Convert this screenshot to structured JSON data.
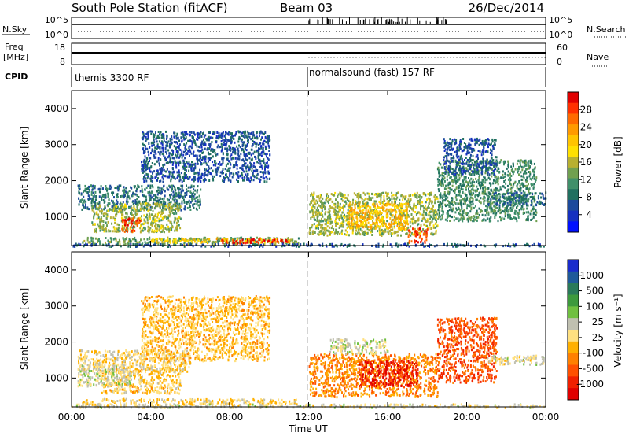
{
  "header": {
    "station": "South Pole Station (fitACF)",
    "beam": "Beam 03",
    "date": "26/Dec/2014"
  },
  "top_panels": {
    "nsky_label": "N.Sky",
    "nsearch_label": "N.Search",
    "freq_label_1": "Freq",
    "freq_label_2": "[MHz]",
    "nave_label": "Nave",
    "cpid_label": "CPID",
    "nsky_ticks": [
      "10^5",
      "10^0"
    ],
    "nsearch_ticks": [
      "10^5",
      "10^0"
    ],
    "freq_ticks": [
      "18",
      "8"
    ],
    "nave_ticks": [
      "60",
      "0"
    ],
    "cpid_segments": [
      {
        "label": "themis 3300 RF",
        "start": 0,
        "end": 12
      },
      {
        "label": "normalsound (fast) 157 RF",
        "start": 12,
        "end": 24
      }
    ]
  },
  "power_colorbar": {
    "label": "Power [dB]",
    "ticks": [
      "28",
      "24",
      "20",
      "16",
      "12",
      "8",
      "4"
    ],
    "colors": [
      "#e00000",
      "#ff3000",
      "#ff6a00",
      "#ff9a00",
      "#ffc400",
      "#ffe000",
      "#b8b030",
      "#70a050",
      "#40906a",
      "#207060",
      "#1c4a9c",
      "#1530c0",
      "#0010ff"
    ]
  },
  "velocity_colorbar": {
    "label": "Velocity [m s⁻¹]",
    "ticks": [
      "1000",
      "500",
      "100",
      "25",
      "-25",
      "-100",
      "-500",
      "-1000"
    ],
    "colors": [
      "#1a2ccc",
      "#1f5a9a",
      "#2a7a5a",
      "#3d9a3d",
      "#70c040",
      "#c0c0b0",
      "#ffe080",
      "#ffb000",
      "#ff8000",
      "#ff5000",
      "#f02000",
      "#e00000"
    ]
  },
  "chart_data": [
    {
      "type": "heatmap",
      "name": "power",
      "ylabel": "Slant Range [km]",
      "y_ticks": [
        "1000",
        "2000",
        "3000",
        "4000"
      ],
      "ylim": [
        200,
        4500
      ],
      "xlim": [
        0,
        24
      ],
      "clim": [
        0,
        30
      ],
      "regions": [
        {
          "t0": 0.3,
          "t1": 6.5,
          "r0": 1200,
          "r1": 1900,
          "v": 8
        },
        {
          "t0": 1.0,
          "t1": 5.5,
          "r0": 600,
          "r1": 1400,
          "v": 14
        },
        {
          "t0": 2.5,
          "t1": 3.5,
          "r0": 600,
          "r1": 1000,
          "v": 26
        },
        {
          "t0": 0.5,
          "t1": 11.5,
          "r0": 250,
          "r1": 450,
          "v": 12
        },
        {
          "t0": 4.0,
          "t1": 11.0,
          "r0": 300,
          "r1": 420,
          "v": 18
        },
        {
          "t0": 7.5,
          "t1": 11.0,
          "r0": 290,
          "r1": 400,
          "v": 28
        },
        {
          "t0": 12.0,
          "t1": 18.5,
          "r0": 500,
          "r1": 1700,
          "v": 14
        },
        {
          "t0": 14.0,
          "t1": 17.0,
          "r0": 700,
          "r1": 1400,
          "v": 20
        },
        {
          "t0": 17.0,
          "t1": 18.0,
          "r0": 300,
          "r1": 700,
          "v": 26
        },
        {
          "t0": 18.5,
          "t1": 23.5,
          "r0": 900,
          "r1": 2600,
          "v": 10
        },
        {
          "t0": 21.0,
          "t1": 24.0,
          "r0": 1350,
          "r1": 1700,
          "v": 8
        },
        {
          "t0": 0.0,
          "t1": 24.0,
          "r0": 200,
          "r1": 280,
          "v": 6
        },
        {
          "t0": 3.5,
          "t1": 10.0,
          "r0": 2000,
          "r1": 3400,
          "v": 6
        },
        {
          "t0": 18.8,
          "t1": 21.5,
          "r0": 2200,
          "r1": 3200,
          "v": 6
        }
      ]
    },
    {
      "type": "heatmap",
      "name": "velocity",
      "ylabel": "Slant Range [km]",
      "y_ticks": [
        "1000",
        "2000",
        "3000",
        "4000"
      ],
      "ylim": [
        200,
        4500
      ],
      "xlim": [
        0,
        24
      ],
      "clim": [
        -1000,
        1000
      ],
      "regions": [
        {
          "t0": 0.3,
          "t1": 6.0,
          "r0": 1200,
          "r1": 1800,
          "v": -80
        },
        {
          "t0": 1.5,
          "t1": 5.5,
          "r0": 600,
          "r1": 1300,
          "v": -150
        },
        {
          "t0": 0.5,
          "t1": 11.5,
          "r0": 280,
          "r1": 450,
          "v": -120
        },
        {
          "t0": 0.3,
          "t1": 3.0,
          "r0": 800,
          "r1": 1400,
          "v": 60
        },
        {
          "t0": 3.5,
          "t1": 10.0,
          "r0": 1500,
          "r1": 3300,
          "v": -200
        },
        {
          "t0": 12.0,
          "t1": 18.5,
          "r0": 500,
          "r1": 1700,
          "v": -400
        },
        {
          "t0": 14.5,
          "t1": 17.5,
          "r0": 800,
          "r1": 1500,
          "v": -800
        },
        {
          "t0": 18.5,
          "t1": 21.5,
          "r0": 900,
          "r1": 2700,
          "v": -600
        },
        {
          "t0": 21.0,
          "t1": 24.0,
          "r0": 1400,
          "r1": 1650,
          "v": 0
        },
        {
          "t0": 0.0,
          "t1": 24.0,
          "r0": 200,
          "r1": 300,
          "v": 10
        },
        {
          "t0": 13.0,
          "t1": 16.0,
          "r0": 1700,
          "r1": 2100,
          "v": 40
        }
      ]
    }
  ],
  "x_axis": {
    "ticks": [
      "00:00",
      "04:00",
      "08:00",
      "12:00",
      "16:00",
      "20:00",
      "00:00"
    ],
    "label": "Time UT"
  }
}
